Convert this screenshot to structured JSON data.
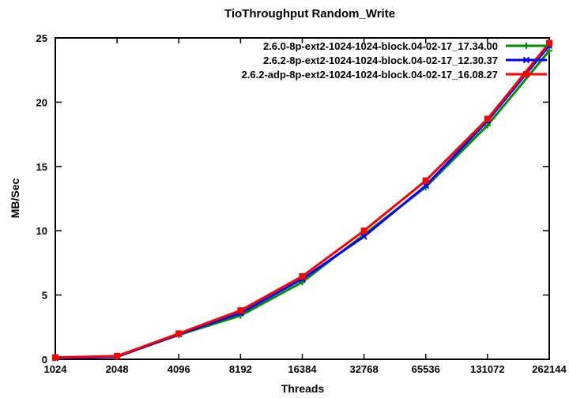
{
  "chart_data": {
    "type": "line",
    "title": "TioThroughput Random_Write",
    "xlabel": "Threads",
    "ylabel": "MB/Sec",
    "x_scale": "log2",
    "grid": false,
    "legend_position": "top-right-inside",
    "x": [
      1024,
      2048,
      4096,
      8192,
      16384,
      32768,
      65536,
      131072,
      262144
    ],
    "xtick_labels": [
      "1024",
      "2048",
      "4096",
      "8192",
      "16384",
      "32768",
      "65536",
      "131072",
      "262144"
    ],
    "yticks": [
      0,
      5,
      10,
      15,
      20,
      25
    ],
    "ylim": [
      0,
      25
    ],
    "series": [
      {
        "name": "2.6.0-8p-ext2-1024-1024-block.04-02-17_17.34.00",
        "color": "#008E00",
        "marker": "plus",
        "values": [
          0.1,
          0.2,
          1.9,
          3.4,
          6.0,
          9.7,
          13.4,
          18.2,
          24.0
        ]
      },
      {
        "name": "2.6.2-8p-ext2-1024-1024-block.04-02-17_12.30.37",
        "color": "#0000FF",
        "marker": "cross",
        "values": [
          0.1,
          0.2,
          1.95,
          3.6,
          6.25,
          9.55,
          13.5,
          18.55,
          24.4
        ]
      },
      {
        "name": "2.6.2-adp-8p-ext2-1024-1024-block.04-02-17_16.08.27",
        "color": "#FF0000",
        "marker": "square",
        "values": [
          0.15,
          0.25,
          2.0,
          3.8,
          6.45,
          10.0,
          13.9,
          18.7,
          24.6
        ]
      }
    ],
    "colors": {
      "background": "#FFFFFF",
      "axis": "#000000",
      "text": "#000000"
    }
  }
}
